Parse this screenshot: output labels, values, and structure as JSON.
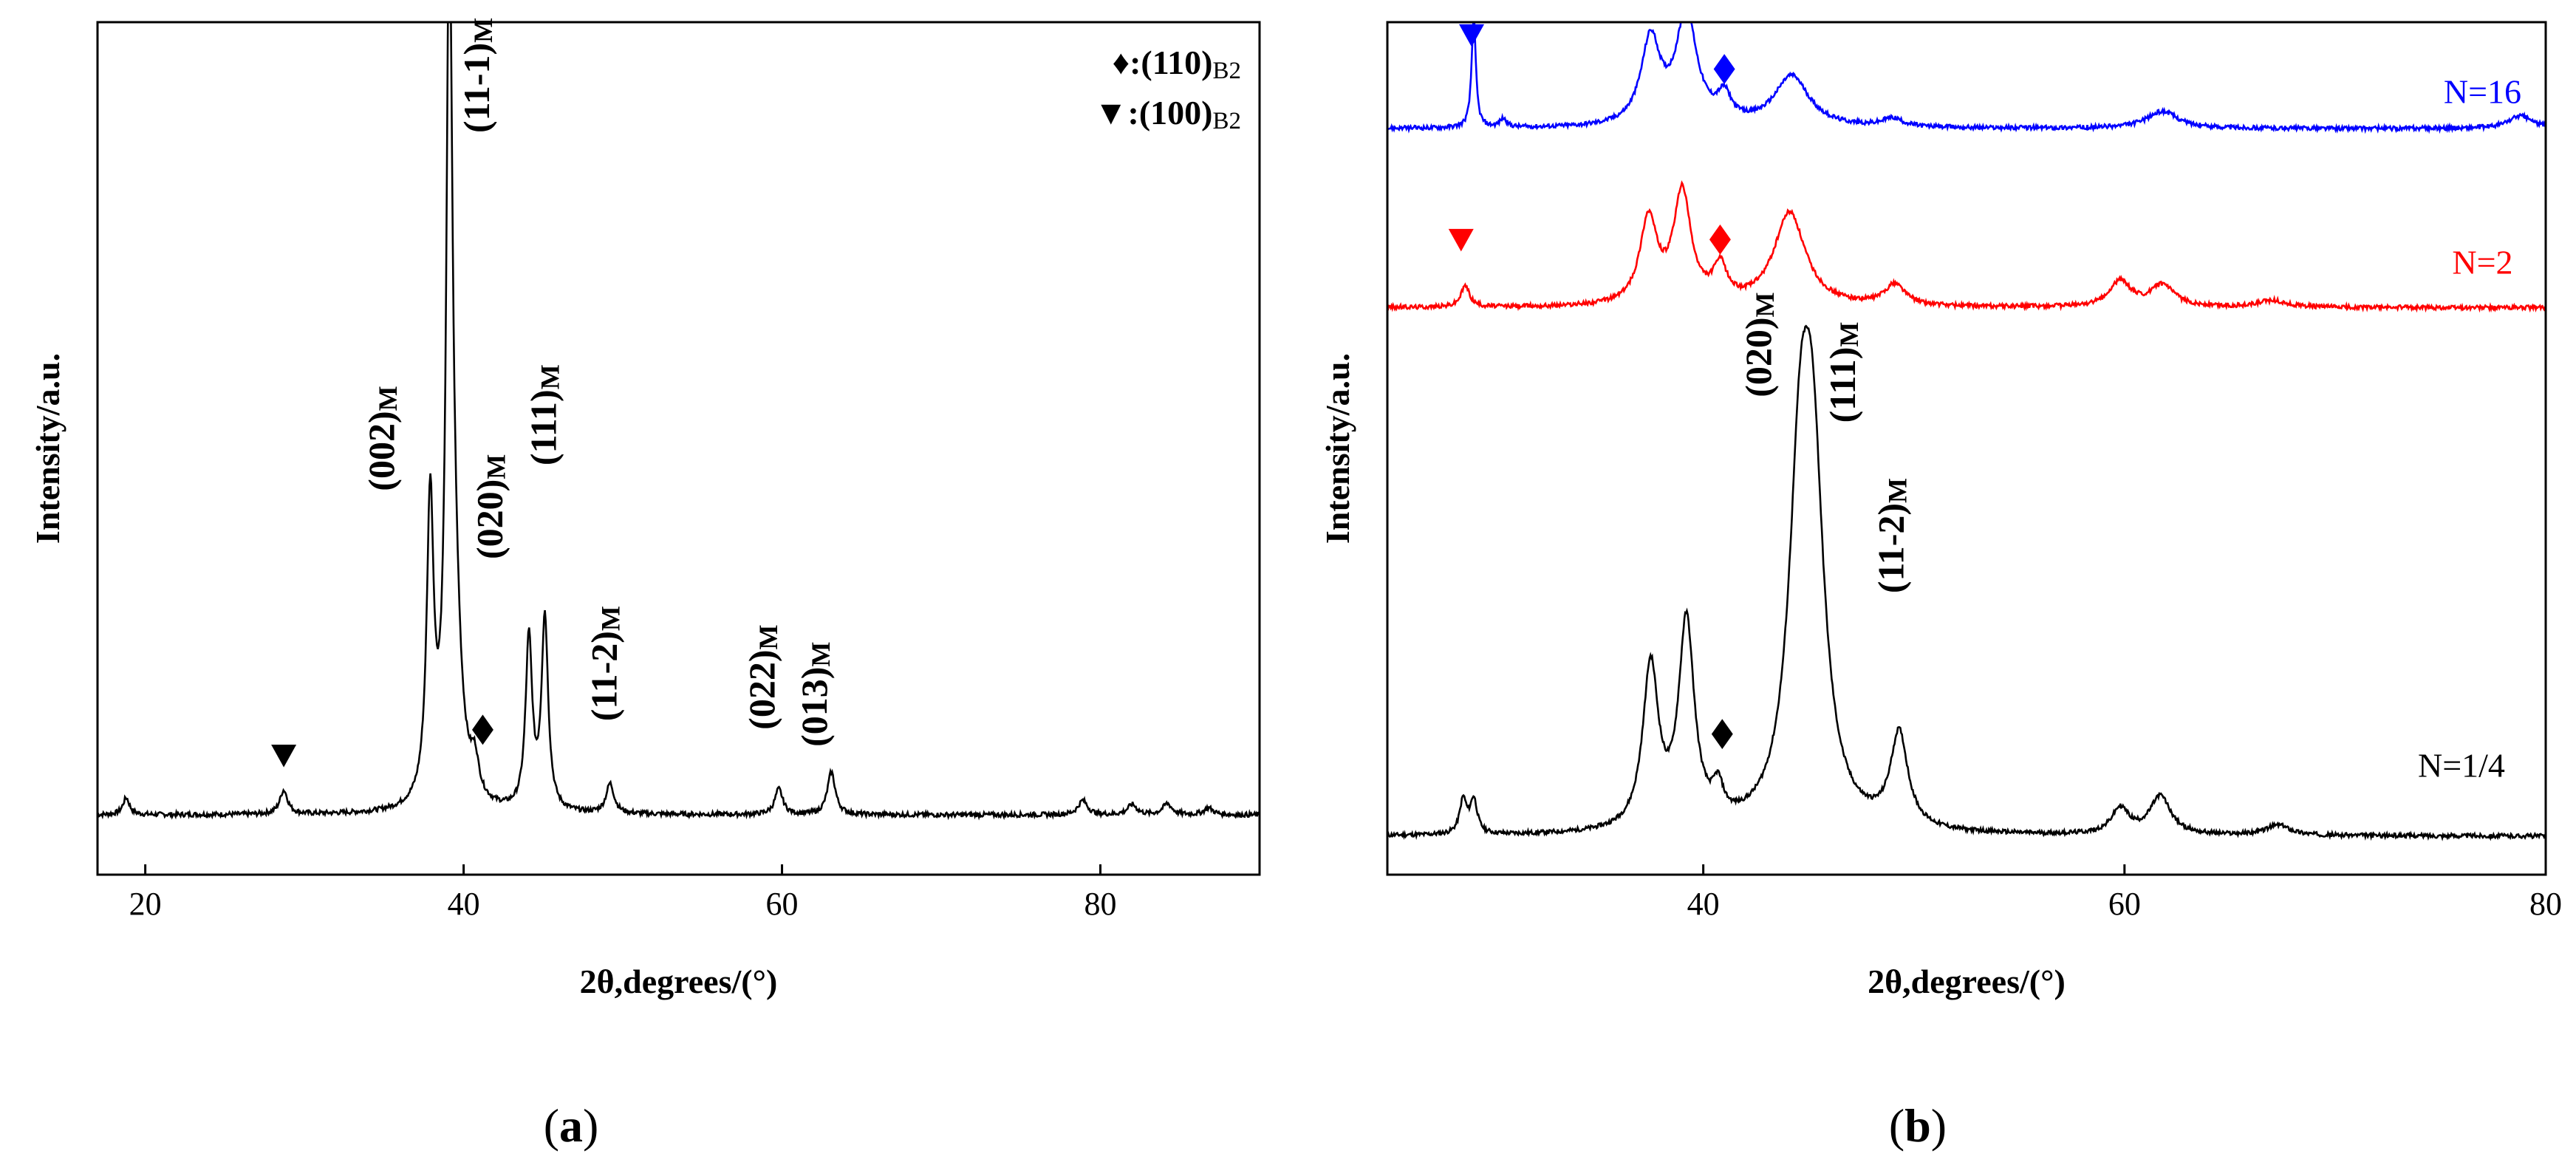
{
  "chart_data": [
    {
      "panel": "(a)",
      "type": "line",
      "xlabel": "2θ,degrees/(°)",
      "ylabel": "Intensity/a.u.",
      "xlim": [
        17,
        90
      ],
      "ylim": [
        0,
        100
      ],
      "xticks": [
        20,
        40,
        60,
        80
      ],
      "yticks_shown": false,
      "baseline": 7,
      "peaks": [
        {
          "x": 18.8,
          "y": 2.0,
          "w": 0.25
        },
        {
          "x": 28.7,
          "y": 2.8,
          "w": 0.3
        },
        {
          "x": 37.9,
          "y": 35.0,
          "w": 0.26
        },
        {
          "x": 39.1,
          "y": 91.0,
          "w": 0.22
        },
        {
          "x": 39.4,
          "y": 20.0,
          "w": 0.5
        },
        {
          "x": 40.7,
          "y": 4.0,
          "w": 0.3
        },
        {
          "x": 44.1,
          "y": 20.0,
          "w": 0.25
        },
        {
          "x": 45.1,
          "y": 22.5,
          "w": 0.25
        },
        {
          "x": 49.2,
          "y": 3.5,
          "w": 0.3
        },
        {
          "x": 59.8,
          "y": 3.0,
          "w": 0.3
        },
        {
          "x": 63.1,
          "y": 5.0,
          "w": 0.3
        },
        {
          "x": 78.9,
          "y": 1.7,
          "w": 0.35
        },
        {
          "x": 82.0,
          "y": 1.2,
          "w": 0.35
        },
        {
          "x": 84.2,
          "y": 1.3,
          "w": 0.35
        },
        {
          "x": 86.8,
          "y": 0.8,
          "w": 0.35
        }
      ],
      "annotations": [
        {
          "id": "p002",
          "label": "(002)",
          "sub": "M",
          "x": 35.6,
          "y": 45
        },
        {
          "id": "p111m",
          "label": "(11-1)",
          "sub": "M",
          "x": 41.6,
          "y": 87
        },
        {
          "id": "p020",
          "label": "(020)",
          "sub": "M",
          "x": 42.4,
          "y": 37
        },
        {
          "id": "p111",
          "label": "(111)",
          "sub": "M",
          "x": 45.8,
          "y": 48
        },
        {
          "id": "p112",
          "label": "(11-2)",
          "sub": "M",
          "x": 49.6,
          "y": 18
        },
        {
          "id": "p022",
          "label": "(022)",
          "sub": "M",
          "x": 59.5,
          "y": 17
        },
        {
          "id": "p013",
          "label": "(013)",
          "sub": "M",
          "x": 62.8,
          "y": 15
        }
      ],
      "markers": [
        {
          "shape": "triangle-down",
          "x": 28.7,
          "y": 14,
          "color": "#000000"
        },
        {
          "shape": "diamond",
          "x": 41.2,
          "y": 17,
          "color": "#000000"
        }
      ],
      "legend": [
        {
          "symbol": "♦",
          "text": ":(110)",
          "sub": "B2"
        },
        {
          "symbol": "▼",
          "text": ":(100)",
          "sub": "B2"
        }
      ]
    },
    {
      "panel": "(b)",
      "type": "line",
      "xlabel": "2θ,degrees/(°)",
      "ylabel": "Intensity/a.u.",
      "xlim": [
        25,
        80
      ],
      "ylim": [
        0,
        100
      ],
      "xticks": [
        40,
        60,
        80
      ],
      "yticks_shown": false,
      "series": [
        {
          "name": "N=1/4",
          "color": "#000000",
          "baseline": 4.5,
          "label_x": 76,
          "label_y": 11.5,
          "peaks": [
            {
              "x": 28.6,
              "y": 4.0,
              "w": 0.2
            },
            {
              "x": 29.1,
              "y": 4.0,
              "w": 0.2
            },
            {
              "x": 37.5,
              "y": 19.0,
              "w": 0.45
            },
            {
              "x": 39.2,
              "y": 24.0,
              "w": 0.45
            },
            {
              "x": 40.7,
              "y": 3.5,
              "w": 0.3
            },
            {
              "x": 44.6,
              "y": 36.0,
              "w": 0.65
            },
            {
              "x": 45.2,
              "y": 36.0,
              "w": 0.65
            },
            {
              "x": 49.3,
              "y": 11.0,
              "w": 0.5
            },
            {
              "x": 59.8,
              "y": 3.0,
              "w": 0.5
            },
            {
              "x": 61.7,
              "y": 4.5,
              "w": 0.6
            },
            {
              "x": 67.3,
              "y": 1.2,
              "w": 0.7
            }
          ]
        },
        {
          "name": "N=2",
          "color": "#ff0000",
          "baseline": 66.5,
          "label_x": 77,
          "label_y": 70.5,
          "peaks": [
            {
              "x": 28.7,
              "y": 2.5,
              "w": 0.25
            },
            {
              "x": 37.4,
              "y": 10.0,
              "w": 0.5
            },
            {
              "x": 39.0,
              "y": 13.0,
              "w": 0.5
            },
            {
              "x": 40.8,
              "y": 4.0,
              "w": 0.4
            },
            {
              "x": 44.1,
              "y": 11.0,
              "w": 0.9
            },
            {
              "x": 49.1,
              "y": 2.5,
              "w": 0.6
            },
            {
              "x": 59.8,
              "y": 3.0,
              "w": 0.6
            },
            {
              "x": 61.8,
              "y": 2.5,
              "w": 0.7
            },
            {
              "x": 67.0,
              "y": 0.8,
              "w": 0.8
            }
          ]
        },
        {
          "name": "N=16",
          "color": "#0000ff",
          "baseline": 87.5,
          "label_x": 77,
          "label_y": 90.5,
          "peaks": [
            {
              "x": 29.1,
              "y": 13.0,
              "w": 0.12
            },
            {
              "x": 30.5,
              "y": 1.0,
              "w": 0.2
            },
            {
              "x": 37.5,
              "y": 10.0,
              "w": 0.55
            },
            {
              "x": 39.2,
              "y": 13.0,
              "w": 0.6
            },
            {
              "x": 41.0,
              "y": 3.0,
              "w": 0.4
            },
            {
              "x": 44.2,
              "y": 6.0,
              "w": 1.0
            },
            {
              "x": 49.0,
              "y": 1.0,
              "w": 0.6
            },
            {
              "x": 61.8,
              "y": 2.0,
              "w": 0.9
            },
            {
              "x": 78.8,
              "y": 1.5,
              "w": 0.7
            }
          ]
        }
      ],
      "annotations": [
        {
          "id": "b020",
          "label": "(020)",
          "sub": "M",
          "x": 43.2,
          "y": 56
        },
        {
          "id": "b111",
          "label": "(111)",
          "sub": "M",
          "x": 47.2,
          "y": 53
        },
        {
          "id": "b112",
          "label": "(11-2)",
          "sub": "M",
          "x": 49.5,
          "y": 33
        }
      ],
      "markers": [
        {
          "shape": "triangle-down",
          "x": 29.0,
          "y": 98.5,
          "color": "#0000ff"
        },
        {
          "shape": "diamond",
          "x": 41.0,
          "y": 94.5,
          "color": "#0000ff"
        },
        {
          "shape": "triangle-down",
          "x": 28.5,
          "y": 74.5,
          "color": "#ff0000"
        },
        {
          "shape": "diamond",
          "x": 40.8,
          "y": 74.5,
          "color": "#ff0000"
        },
        {
          "shape": "diamond",
          "x": 40.9,
          "y": 16.5,
          "color": "#000000"
        }
      ]
    }
  ],
  "captions": {
    "a": {
      "open": "(",
      "letter": "a",
      "close": ")"
    },
    "b": {
      "open": "(",
      "letter": "b",
      "close": ")"
    }
  }
}
